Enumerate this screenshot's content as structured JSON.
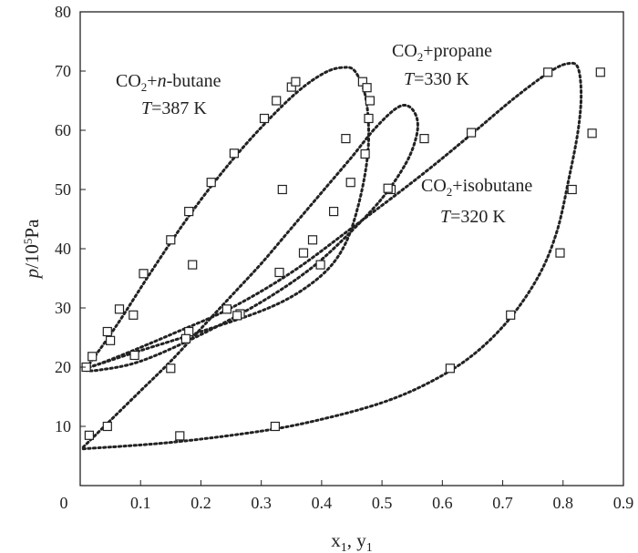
{
  "chart_data": {
    "type": "scatter",
    "xlabel": "x1, y1",
    "ylabel": "p/10^5Pa",
    "xlim": [
      0,
      0.9
    ],
    "ylim": [
      0,
      80
    ],
    "xticks": [
      "0",
      "0.1",
      "0.2",
      "0.3",
      "0.4",
      "0.5",
      "0.6",
      "0.7",
      "0.8",
      "0.9"
    ],
    "yticks": [
      "10",
      "20",
      "30",
      "40",
      "50",
      "60",
      "70",
      "80"
    ],
    "grid": false,
    "legend": "none",
    "annotations": [
      {
        "label": "CO2+n-butane",
        "temperature": "T=387 K"
      },
      {
        "label": "CO2+propane",
        "temperature": "T=330 K"
      },
      {
        "label": "CO2+isobutane",
        "temperature": "T=320 K"
      }
    ],
    "series": [
      {
        "system": "CO2+n-butane T=387 K",
        "points": [
          [
            0.01,
            20.0
          ],
          [
            0.045,
            26.0
          ],
          [
            0.065,
            29.8
          ],
          [
            0.105,
            35.8
          ],
          [
            0.15,
            41.5
          ],
          [
            0.18,
            46.3
          ],
          [
            0.217,
            51.2
          ],
          [
            0.255,
            56.1
          ],
          [
            0.305,
            62.0
          ],
          [
            0.325,
            65.0
          ],
          [
            0.35,
            67.3
          ],
          [
            0.357,
            68.2
          ],
          [
            0.468,
            68.2
          ],
          [
            0.475,
            67.2
          ],
          [
            0.48,
            65.0
          ],
          [
            0.478,
            62.0
          ],
          [
            0.472,
            56.0
          ],
          [
            0.44,
            58.6
          ],
          [
            0.448,
            51.2
          ],
          [
            0.42,
            46.3
          ],
          [
            0.385,
            41.5
          ],
          [
            0.37,
            39.3
          ],
          [
            0.33,
            36.0
          ],
          [
            0.265,
            29.0
          ],
          [
            0.18,
            26.0
          ],
          [
            0.09,
            22.0
          ],
          [
            0.02,
            21.8
          ]
        ],
        "curve": [
          [
            0.01,
            19.8
          ],
          [
            0.06,
            27.0
          ],
          [
            0.12,
            36.5
          ],
          [
            0.18,
            45.5
          ],
          [
            0.24,
            53.5
          ],
          [
            0.3,
            60.5
          ],
          [
            0.36,
            66.5
          ],
          [
            0.405,
            69.7
          ],
          [
            0.435,
            70.6
          ],
          [
            0.455,
            70.0
          ],
          [
            0.472,
            66.0
          ],
          [
            0.478,
            60.0
          ],
          [
            0.474,
            54.0
          ],
          [
            0.46,
            47.0
          ],
          [
            0.44,
            41.0
          ],
          [
            0.41,
            36.5
          ],
          [
            0.36,
            32.5
          ],
          [
            0.3,
            29.5
          ],
          [
            0.2,
            26.0
          ],
          [
            0.1,
            22.8
          ],
          [
            0.04,
            20.8
          ],
          [
            0.01,
            19.8
          ]
        ]
      },
      {
        "system": "CO2+propane T=330 K",
        "points": [
          [
            0.015,
            8.5
          ],
          [
            0.045,
            10.0
          ],
          [
            0.15,
            19.8
          ],
          [
            0.175,
            24.8
          ],
          [
            0.243,
            29.8
          ],
          [
            0.26,
            28.7
          ],
          [
            0.186,
            37.3
          ],
          [
            0.088,
            28.8
          ],
          [
            0.05,
            24.5
          ],
          [
            0.335,
            50.0
          ],
          [
            0.515,
            50.0
          ],
          [
            0.57,
            58.6
          ],
          [
            0.398,
            37.3
          ]
        ],
        "curve": [
          [
            0.005,
            6.5
          ],
          [
            0.05,
            11.0
          ],
          [
            0.1,
            16.0
          ],
          [
            0.15,
            21.0
          ],
          [
            0.2,
            26.5
          ],
          [
            0.25,
            32.0
          ],
          [
            0.3,
            37.5
          ],
          [
            0.35,
            43.5
          ],
          [
            0.4,
            49.5
          ],
          [
            0.45,
            55.5
          ],
          [
            0.49,
            60.5
          ],
          [
            0.525,
            63.8
          ],
          [
            0.545,
            64.0
          ],
          [
            0.558,
            62.0
          ],
          [
            0.557,
            59.0
          ],
          [
            0.54,
            54.5
          ],
          [
            0.5,
            48.5
          ],
          [
            0.44,
            42.0
          ],
          [
            0.38,
            36.5
          ],
          [
            0.3,
            31.0
          ],
          [
            0.2,
            25.5
          ],
          [
            0.1,
            21.0
          ],
          [
            0.03,
            19.5
          ],
          [
            0.005,
            19.5
          ]
        ]
      },
      {
        "system": "CO2+isobutane T=320 K",
        "points": [
          [
            0.165,
            8.4
          ],
          [
            0.323,
            10.0
          ],
          [
            0.613,
            19.8
          ],
          [
            0.713,
            28.8
          ],
          [
            0.795,
            39.3
          ],
          [
            0.815,
            50.0
          ],
          [
            0.848,
            59.5
          ],
          [
            0.862,
            69.8
          ],
          [
            0.775,
            69.8
          ],
          [
            0.648,
            59.6
          ],
          [
            0.51,
            50.2
          ]
        ],
        "curve": [
          [
            0.005,
            6.2
          ],
          [
            0.15,
            7.3
          ],
          [
            0.3,
            9.2
          ],
          [
            0.4,
            11.2
          ],
          [
            0.5,
            14.0
          ],
          [
            0.58,
            17.5
          ],
          [
            0.65,
            22.0
          ],
          [
            0.71,
            28.0
          ],
          [
            0.76,
            35.5
          ],
          [
            0.79,
            43.0
          ],
          [
            0.81,
            52.0
          ],
          [
            0.825,
            60.0
          ],
          [
            0.83,
            66.0
          ],
          [
            0.825,
            70.5
          ],
          [
            0.81,
            71.3
          ],
          [
            0.78,
            70.0
          ],
          [
            0.72,
            65.5
          ],
          [
            0.65,
            59.5
          ],
          [
            0.56,
            52.0
          ],
          [
            0.45,
            43.5
          ],
          [
            0.35,
            36.0
          ],
          [
            0.25,
            30.0
          ],
          [
            0.15,
            25.5
          ],
          [
            0.08,
            22.5
          ],
          [
            0.03,
            20.5
          ],
          [
            0.005,
            19.8
          ]
        ]
      }
    ]
  }
}
